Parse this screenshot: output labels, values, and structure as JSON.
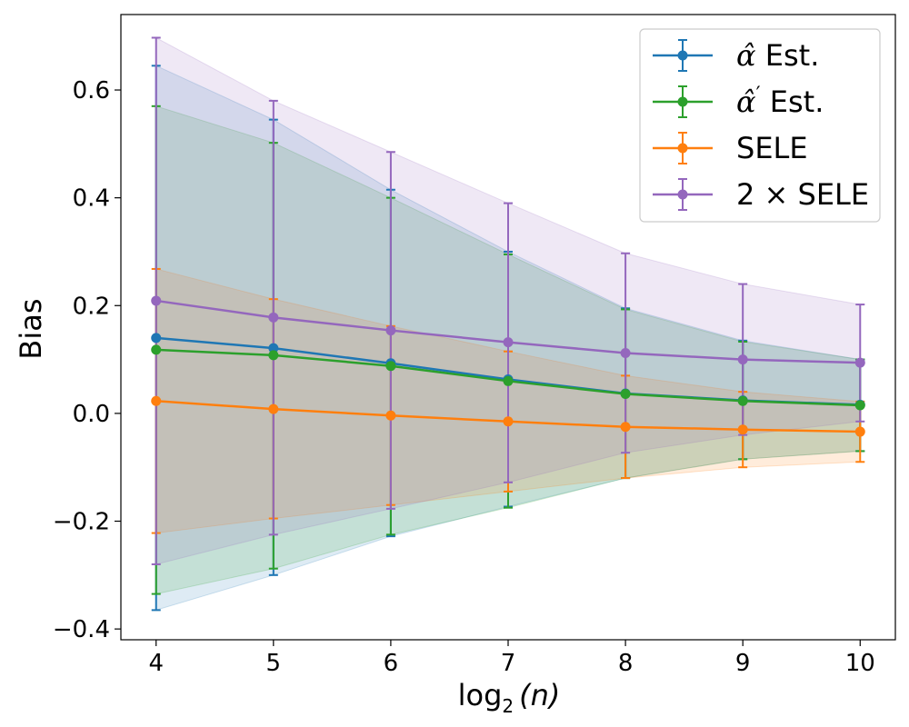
{
  "chart_data": {
    "type": "line",
    "x": [
      4,
      5,
      6,
      7,
      8,
      9,
      10
    ],
    "xlabel": {
      "base": "log",
      "sub": "2",
      "arg": "(n)"
    },
    "ylabel": "Bias",
    "xlim": [
      3.7,
      10.3
    ],
    "ylim": [
      -0.42,
      0.74
    ],
    "xticks": [
      "4",
      "5",
      "6",
      "7",
      "8",
      "9",
      "10"
    ],
    "yticks": [
      {
        "value": -0.4,
        "label": "−0.4"
      },
      {
        "value": -0.2,
        "label": "−0.2"
      },
      {
        "value": 0.0,
        "label": "0.0"
      },
      {
        "value": 0.2,
        "label": "0.2"
      },
      {
        "value": 0.4,
        "label": "0.4"
      },
      {
        "value": 0.6,
        "label": "0.6"
      }
    ],
    "legend_position": "top-right",
    "series": [
      {
        "name": "alpha-hat",
        "legend_label": {
          "symbol": "α̂",
          "prime": "",
          "text": " Est."
        },
        "color": "#1f77b4",
        "values": [
          0.14,
          0.121,
          0.093,
          0.063,
          0.037,
          0.024,
          0.016
        ],
        "lower": [
          -0.365,
          -0.3,
          -0.228,
          -0.173,
          -0.12,
          -0.085,
          -0.07
        ],
        "upper": [
          0.645,
          0.545,
          0.415,
          0.3,
          0.195,
          0.135,
          0.1
        ]
      },
      {
        "name": "alpha-hat-prime",
        "legend_label": {
          "symbol": "α̂",
          "prime": "′",
          "text": " Est."
        },
        "color": "#2ca02c",
        "values": [
          0.118,
          0.108,
          0.088,
          0.06,
          0.036,
          0.023,
          0.015
        ],
        "lower": [
          -0.335,
          -0.288,
          -0.225,
          -0.175,
          -0.12,
          -0.085,
          -0.07
        ],
        "upper": [
          0.57,
          0.502,
          0.4,
          0.295,
          0.193,
          0.133,
          0.1
        ]
      },
      {
        "name": "sele",
        "legend_label": {
          "symbol": "",
          "prime": "",
          "text": "SELE"
        },
        "color": "#ff7f0e",
        "values": [
          0.023,
          0.008,
          -0.004,
          -0.015,
          -0.025,
          -0.03,
          -0.034
        ],
        "lower": [
          -0.222,
          -0.195,
          -0.17,
          -0.145,
          -0.12,
          -0.1,
          -0.09
        ],
        "upper": [
          0.268,
          0.212,
          0.162,
          0.115,
          0.07,
          0.04,
          0.022
        ]
      },
      {
        "name": "two-sele",
        "legend_label": {
          "symbol": "",
          "prime": "",
          "text": "2 × SELE"
        },
        "color": "#9467bd",
        "values": [
          0.209,
          0.178,
          0.154,
          0.132,
          0.112,
          0.1,
          0.094
        ],
        "lower": [
          -0.28,
          -0.225,
          -0.177,
          -0.128,
          -0.073,
          -0.04,
          -0.015
        ],
        "upper": [
          0.697,
          0.58,
          0.485,
          0.39,
          0.297,
          0.24,
          0.202
        ]
      }
    ]
  }
}
